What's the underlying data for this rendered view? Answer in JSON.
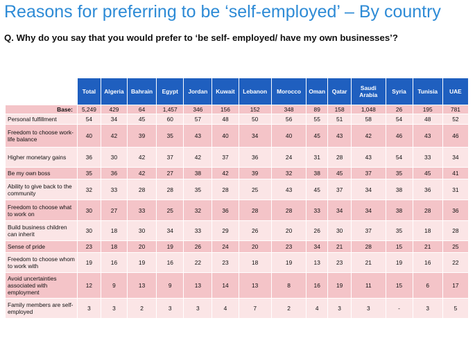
{
  "title": "Reasons for preferring to be ‘self-employed’ – By country",
  "question": "Q. Why do you say that you would prefer to ‘be self- employed/ have my own businesses’?",
  "columns": [
    "Total",
    "Algeria",
    "Bahrain",
    "Egypt",
    "Jordan",
    "Kuwait",
    "Lebanon",
    "Morocco",
    "Oman",
    "Qatar",
    "Saudi Arabia",
    "Syria",
    "Tunisia",
    "UAE"
  ],
  "rows": [
    {
      "label": "Base:",
      "values": [
        "5,249",
        "429",
        "64",
        "1,457",
        "346",
        "156",
        "152",
        "348",
        "89",
        "158",
        "1,048",
        "26",
        "195",
        "781"
      ]
    },
    {
      "label": "Personal fulfillment",
      "values": [
        "54",
        "34",
        "45",
        "60",
        "57",
        "48",
        "50",
        "56",
        "55",
        "51",
        "58",
        "54",
        "48",
        "52"
      ]
    },
    {
      "label": "Freedom to choose work-life balance",
      "values": [
        "40",
        "42",
        "39",
        "35",
        "43",
        "40",
        "34",
        "40",
        "45",
        "43",
        "42",
        "46",
        "43",
        "46"
      ]
    },
    {
      "label": "Higher monetary gains",
      "values": [
        "36",
        "30",
        "42",
        "37",
        "42",
        "37",
        "36",
        "24",
        "31",
        "28",
        "43",
        "54",
        "33",
        "34"
      ]
    },
    {
      "label": "Be my own boss",
      "values": [
        "35",
        "36",
        "42",
        "27",
        "38",
        "42",
        "39",
        "32",
        "38",
        "45",
        "37",
        "35",
        "45",
        "41"
      ]
    },
    {
      "label": "Ability to give back to the community",
      "values": [
        "32",
        "33",
        "28",
        "28",
        "35",
        "28",
        "25",
        "43",
        "45",
        "37",
        "34",
        "38",
        "36",
        "31"
      ]
    },
    {
      "label": "Freedom to choose what to work on",
      "values": [
        "30",
        "27",
        "33",
        "25",
        "32",
        "36",
        "28",
        "28",
        "33",
        "34",
        "34",
        "38",
        "28",
        "36"
      ]
    },
    {
      "label": "Build business children can inherit",
      "values": [
        "30",
        "18",
        "30",
        "34",
        "33",
        "29",
        "26",
        "20",
        "26",
        "30",
        "37",
        "35",
        "18",
        "28"
      ]
    },
    {
      "label": "Sense of pride",
      "values": [
        "23",
        "18",
        "20",
        "19",
        "26",
        "24",
        "20",
        "23",
        "34",
        "21",
        "28",
        "15",
        "21",
        "25"
      ]
    },
    {
      "label": "Freedom to choose whom to work with",
      "values": [
        "19",
        "16",
        "19",
        "16",
        "22",
        "23",
        "18",
        "19",
        "13",
        "23",
        "21",
        "19",
        "16",
        "22"
      ]
    },
    {
      "label": "Avoid uncertainties associated with employment",
      "values": [
        "12",
        "9",
        "13",
        "9",
        "13",
        "14",
        "13",
        "8",
        "16",
        "19",
        "11",
        "15",
        "6",
        "17"
      ]
    },
    {
      "label": "Family members are self-employed",
      "values": [
        "3",
        "3",
        "2",
        "3",
        "3",
        "4",
        "7",
        "2",
        "4",
        "3",
        "3",
        "-",
        "3",
        "5"
      ]
    }
  ],
  "colors": {
    "title": "#2e8bd6",
    "header": "#1f5fbf",
    "row_dark": "#f4c4c8",
    "row_light": "#fbe5e6"
  }
}
